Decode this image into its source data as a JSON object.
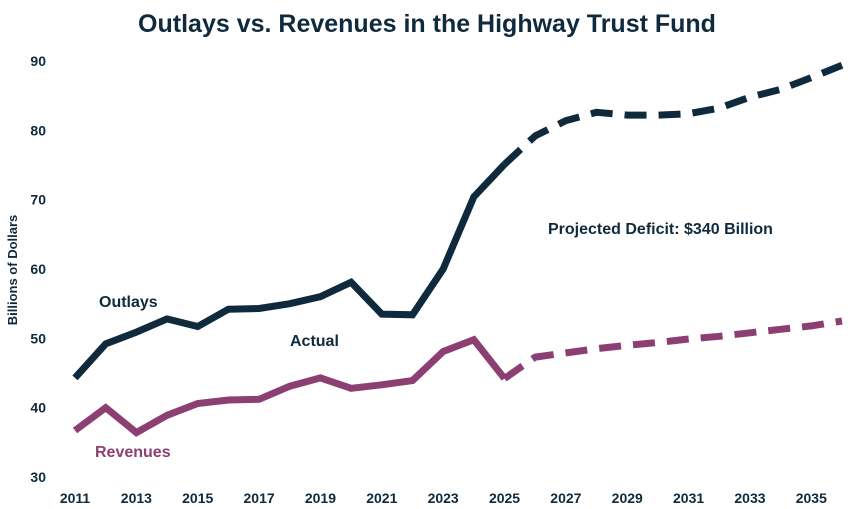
{
  "chart_data": {
    "type": "line",
    "title": "Outlays vs. Revenues in the Highway Trust Fund",
    "xlabel": "",
    "ylabel": "Billions of Dollars",
    "xlim": [
      2011,
      2036
    ],
    "ylim": [
      30,
      90
    ],
    "x_ticks": [
      2011,
      2013,
      2015,
      2017,
      2019,
      2021,
      2023,
      2025,
      2027,
      2029,
      2031,
      2033,
      2035
    ],
    "y_ticks": [
      30,
      40,
      50,
      60,
      70,
      80,
      90
    ],
    "grid": false,
    "series": [
      {
        "name": "Outlays",
        "color": "#0f2a3d",
        "actual": {
          "x": [
            2011,
            2012,
            2013,
            2014,
            2015,
            2016,
            2017,
            2018,
            2019,
            2020,
            2021,
            2022,
            2023,
            2024,
            2025
          ],
          "values": [
            44.3,
            49.2,
            50.9,
            52.8,
            51.7,
            54.2,
            54.3,
            55.0,
            56.0,
            58.1,
            53.5,
            53.4,
            60.0,
            70.4,
            75.1
          ]
        },
        "projected": {
          "x": [
            2025,
            2026,
            2027,
            2028,
            2029,
            2030,
            2031,
            2032,
            2033,
            2034,
            2035,
            2036
          ],
          "values": [
            75.1,
            79.2,
            81.4,
            82.6,
            82.2,
            82.2,
            82.4,
            83.2,
            84.8,
            85.9,
            87.6,
            89.4
          ]
        }
      },
      {
        "name": "Revenues",
        "color": "#8c3f72",
        "actual": {
          "x": [
            2011,
            2012,
            2013,
            2014,
            2015,
            2016,
            2017,
            2018,
            2019,
            2020,
            2021,
            2022,
            2023,
            2024,
            2025
          ],
          "values": [
            36.7,
            40.0,
            36.4,
            38.9,
            40.6,
            41.1,
            41.2,
            43.1,
            44.3,
            42.8,
            43.3,
            43.9,
            48.1,
            49.8,
            44.2
          ]
        },
        "projected": {
          "x": [
            2025,
            2026,
            2027,
            2028,
            2029,
            2030,
            2031,
            2032,
            2033,
            2034,
            2035,
            2036
          ],
          "values": [
            44.2,
            47.3,
            47.9,
            48.5,
            49.0,
            49.4,
            49.9,
            50.3,
            50.8,
            51.3,
            51.8,
            52.5
          ]
        }
      }
    ],
    "annotations": {
      "outlays_label": "Outlays",
      "revenues_label": "Revenues",
      "actual_label": "Actual",
      "deficit_label": "Projected Deficit: $340 Billion"
    }
  }
}
